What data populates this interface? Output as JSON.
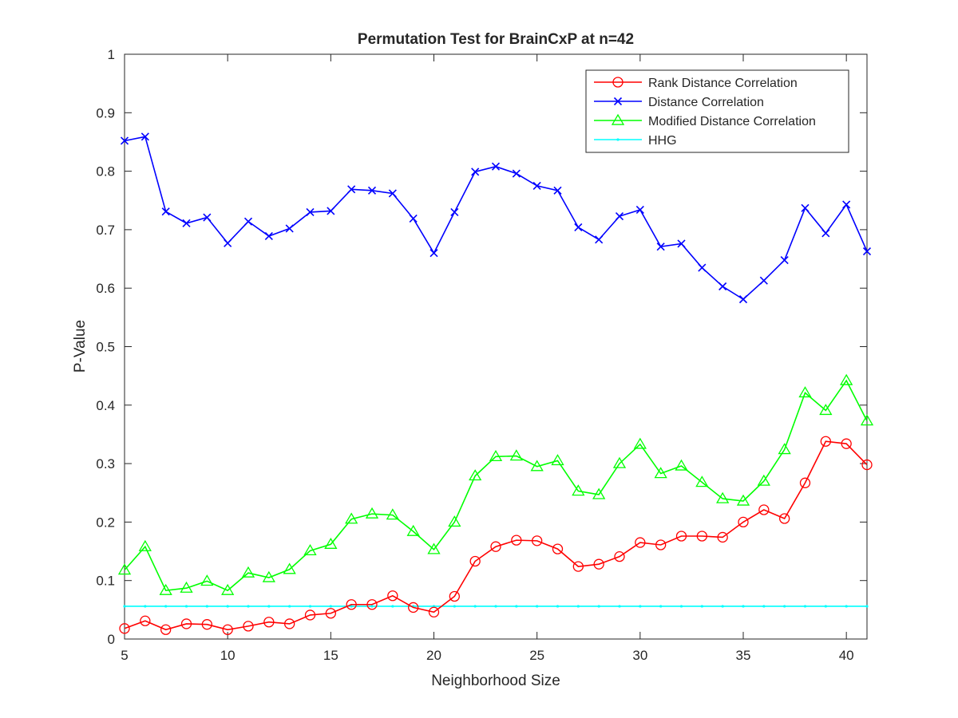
{
  "chart_data": {
    "type": "line",
    "title": "Permutation Test for BrainCxP at n=42",
    "xlabel": "Neighborhood Size",
    "ylabel": "P-Value",
    "xlim": [
      5,
      41
    ],
    "ylim": [
      0,
      1
    ],
    "xticks": [
      5,
      10,
      15,
      20,
      25,
      30,
      35,
      40
    ],
    "xtick_labels": [
      "5",
      "10",
      "15",
      "20",
      "25",
      "30",
      "35",
      "40"
    ],
    "yticks": [
      0,
      0.1,
      0.2,
      0.3,
      0.4,
      0.5,
      0.6,
      0.7,
      0.8,
      0.9,
      1
    ],
    "ytick_labels": [
      "0",
      "0.1",
      "0.2",
      "0.3",
      "0.4",
      "0.5",
      "0.6",
      "0.7",
      "0.8",
      "0.9",
      "1"
    ],
    "grid": false,
    "legend_position": "top-right",
    "x": [
      5,
      6,
      7,
      8,
      9,
      10,
      11,
      12,
      13,
      14,
      15,
      16,
      17,
      18,
      19,
      20,
      21,
      22,
      23,
      24,
      25,
      26,
      27,
      28,
      29,
      30,
      31,
      32,
      33,
      34,
      35,
      36,
      37,
      38,
      39,
      40,
      41
    ],
    "series": [
      {
        "name": "Rank Distance Correlation",
        "color": "#ff0000",
        "marker": "circle",
        "values": [
          0.018,
          0.031,
          0.016,
          0.026,
          0.025,
          0.016,
          0.022,
          0.029,
          0.026,
          0.041,
          0.044,
          0.059,
          0.059,
          0.074,
          0.054,
          0.046,
          0.073,
          0.133,
          0.158,
          0.169,
          0.168,
          0.154,
          0.124,
          0.128,
          0.141,
          0.165,
          0.161,
          0.176,
          0.176,
          0.174,
          0.2,
          0.221,
          0.206,
          0.267,
          0.338,
          0.334,
          0.298
        ]
      },
      {
        "name": "Distance Correlation",
        "color": "#0000ff",
        "marker": "x",
        "values": [
          0.852,
          0.859,
          0.731,
          0.711,
          0.721,
          0.677,
          0.714,
          0.689,
          0.702,
          0.73,
          0.732,
          0.769,
          0.767,
          0.762,
          0.719,
          0.66,
          0.73,
          0.799,
          0.808,
          0.796,
          0.775,
          0.767,
          0.704,
          0.683,
          0.723,
          0.734,
          0.671,
          0.676,
          0.635,
          0.603,
          0.581,
          0.613,
          0.648,
          0.737,
          0.694,
          0.743,
          0.663
        ]
      },
      {
        "name": "Modified Distance Correlation",
        "color": "#00ff00",
        "marker": "triangle",
        "values": [
          0.118,
          0.158,
          0.083,
          0.087,
          0.099,
          0.083,
          0.113,
          0.105,
          0.119,
          0.151,
          0.162,
          0.205,
          0.214,
          0.212,
          0.184,
          0.153,
          0.2,
          0.279,
          0.312,
          0.313,
          0.295,
          0.305,
          0.253,
          0.247,
          0.3,
          0.333,
          0.283,
          0.296,
          0.268,
          0.24,
          0.236,
          0.27,
          0.324,
          0.421,
          0.391,
          0.442,
          0.373
        ]
      },
      {
        "name": "HHG",
        "color": "#00ffff",
        "marker": "dot",
        "values": [
          0.056,
          0.056,
          0.056,
          0.056,
          0.056,
          0.056,
          0.056,
          0.056,
          0.056,
          0.056,
          0.056,
          0.056,
          0.056,
          0.056,
          0.056,
          0.056,
          0.056,
          0.056,
          0.056,
          0.056,
          0.056,
          0.056,
          0.056,
          0.056,
          0.056,
          0.056,
          0.056,
          0.056,
          0.056,
          0.056,
          0.056,
          0.056,
          0.056,
          0.056,
          0.056,
          0.056,
          0.056
        ]
      }
    ]
  }
}
